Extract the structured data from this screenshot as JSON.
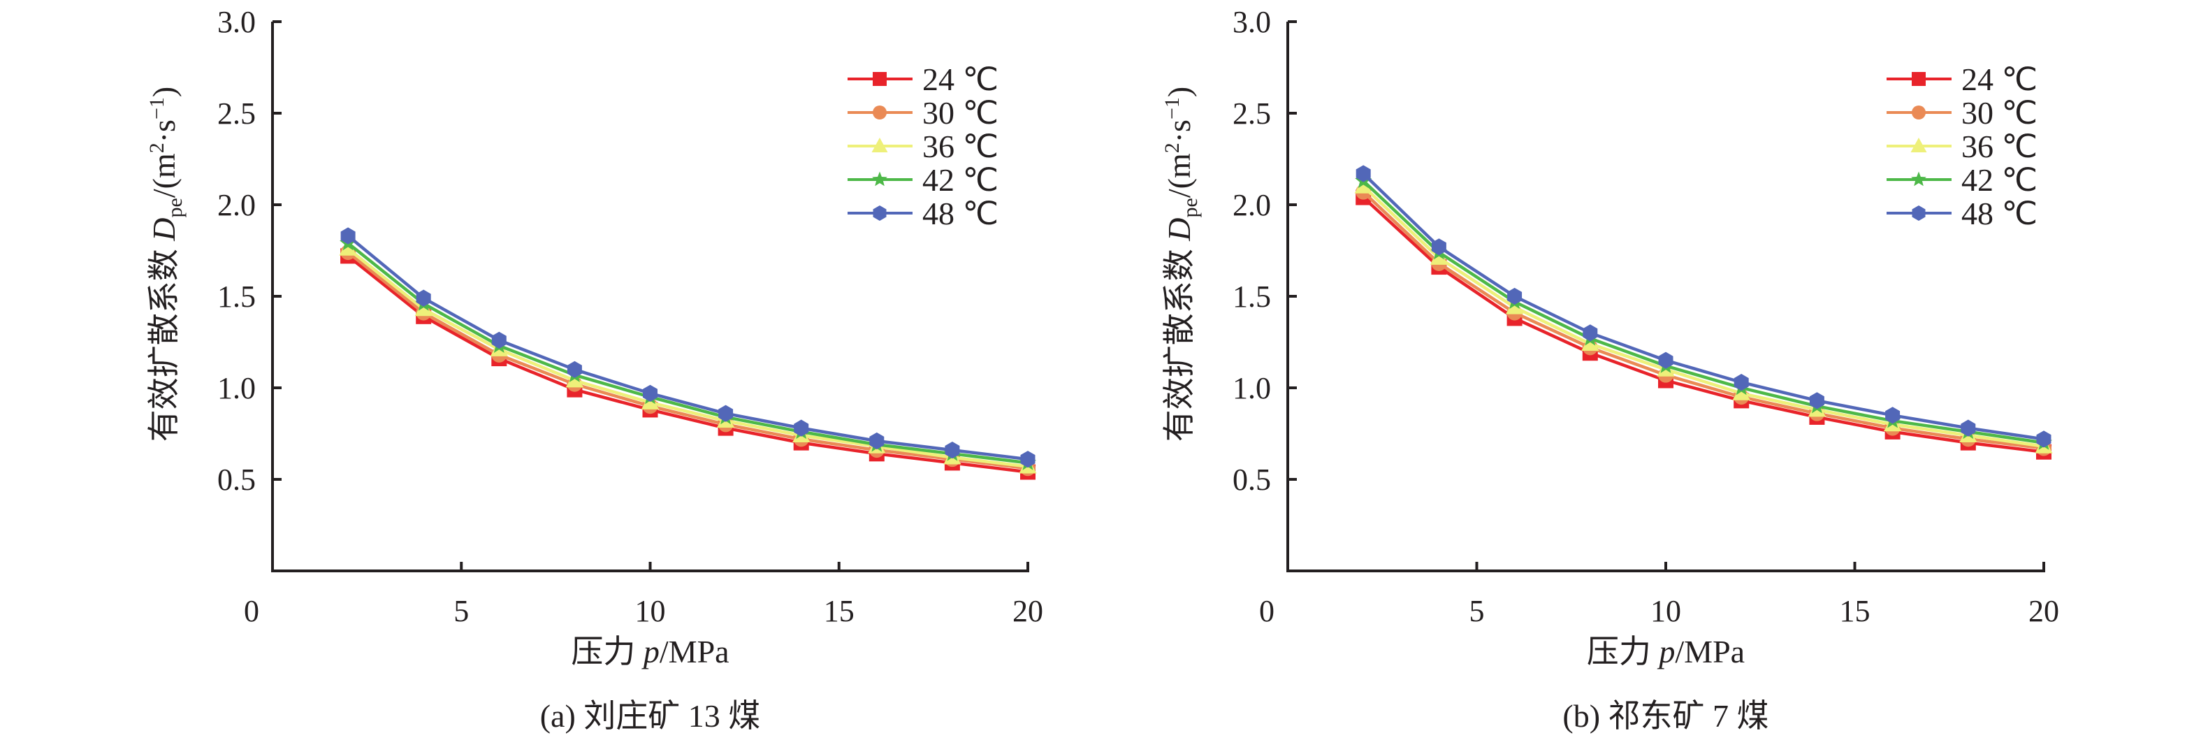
{
  "chart_data": [
    {
      "id": "a",
      "type": "line",
      "subtitle": "(a) 刘庄矿 13 煤",
      "xlabel": "压力 p/MPa",
      "xlabel_parts": {
        "prefix": "压力 ",
        "var": "p",
        "suffix": "/MPa"
      },
      "ylabel": "有效扩散系数 Dpe/(m²·s⁻¹)",
      "ylabel_parts": {
        "prefix": "有效扩散系数 ",
        "var": "D",
        "sub": "pe",
        "unit_open": "/(m",
        "sup1": "2",
        "mid": "·s",
        "sup2": "−1",
        "unit_close": ")"
      },
      "xlim": [
        0,
        20
      ],
      "ylim": [
        0,
        3.0
      ],
      "xticks": [
        "0",
        "5",
        "10",
        "15",
        "20"
      ],
      "xtick_values": [
        0,
        5,
        10,
        15,
        20
      ],
      "yticks": [
        "0.5",
        "1.0",
        "1.5",
        "2.0",
        "2.5",
        "3.0"
      ],
      "ytick_values": [
        0.5,
        1.0,
        1.5,
        2.0,
        2.5,
        3.0
      ],
      "grid": false,
      "legend_position": "top-right",
      "x": [
        2,
        4,
        6,
        8,
        10,
        12,
        14,
        16,
        18,
        20
      ],
      "series": [
        {
          "name": "24 ℃",
          "color": "#e8232a",
          "marker": "square",
          "values": [
            1.72,
            1.39,
            1.16,
            0.99,
            0.88,
            0.78,
            0.7,
            0.64,
            0.59,
            0.54
          ]
        },
        {
          "name": "30 ℃",
          "color": "#ea8a55",
          "marker": "circle",
          "values": [
            1.74,
            1.41,
            1.18,
            1.02,
            0.9,
            0.8,
            0.72,
            0.66,
            0.61,
            0.56
          ]
        },
        {
          "name": "36 ℃",
          "color": "#eef07a",
          "marker": "triangle",
          "values": [
            1.76,
            1.43,
            1.21,
            1.04,
            0.92,
            0.82,
            0.74,
            0.68,
            0.62,
            0.57
          ]
        },
        {
          "name": "42 ℃",
          "color": "#4db848",
          "marker": "star",
          "values": [
            1.79,
            1.46,
            1.23,
            1.07,
            0.95,
            0.84,
            0.76,
            0.69,
            0.64,
            0.59
          ]
        },
        {
          "name": "48 ℃",
          "color": "#5267b8",
          "marker": "hexagon",
          "values": [
            1.83,
            1.49,
            1.26,
            1.1,
            0.97,
            0.86,
            0.78,
            0.71,
            0.66,
            0.61
          ]
        }
      ]
    },
    {
      "id": "b",
      "type": "line",
      "subtitle": "(b) 祁东矿 7 煤",
      "xlabel": "压力 p/MPa",
      "xlabel_parts": {
        "prefix": "压力 ",
        "var": "p",
        "suffix": "/MPa"
      },
      "ylabel": "有效扩散系数 Dpe/(m²·s⁻¹)",
      "ylabel_parts": {
        "prefix": "有效扩散系数 ",
        "var": "D",
        "sub": "pe",
        "unit_open": "/(m",
        "sup1": "2",
        "mid": "·s",
        "sup2": "−1",
        "unit_close": ")"
      },
      "xlim": [
        0,
        20
      ],
      "ylim": [
        0,
        3.0
      ],
      "xticks": [
        "0",
        "5",
        "10",
        "15",
        "20"
      ],
      "xtick_values": [
        0,
        5,
        10,
        15,
        20
      ],
      "yticks": [
        "0.5",
        "1.0",
        "1.5",
        "2.0",
        "2.5",
        "3.0"
      ],
      "ytick_values": [
        0.5,
        1.0,
        1.5,
        2.0,
        2.5,
        3.0
      ],
      "grid": false,
      "legend_position": "top-right",
      "x": [
        2,
        4,
        6,
        8,
        10,
        12,
        14,
        16,
        18,
        20
      ],
      "series": [
        {
          "name": "24 ℃",
          "color": "#e8232a",
          "marker": "square",
          "values": [
            2.04,
            1.66,
            1.38,
            1.19,
            1.04,
            0.93,
            0.84,
            0.76,
            0.7,
            0.65
          ]
        },
        {
          "name": "30 ℃",
          "color": "#ea8a55",
          "marker": "circle",
          "values": [
            2.07,
            1.68,
            1.41,
            1.22,
            1.07,
            0.95,
            0.86,
            0.78,
            0.72,
            0.67
          ]
        },
        {
          "name": "36 ℃",
          "color": "#eef07a",
          "marker": "triangle",
          "values": [
            2.1,
            1.71,
            1.44,
            1.24,
            1.1,
            0.97,
            0.88,
            0.8,
            0.74,
            0.68
          ]
        },
        {
          "name": "42 ℃",
          "color": "#4db848",
          "marker": "star",
          "values": [
            2.13,
            1.74,
            1.47,
            1.27,
            1.12,
            1.0,
            0.9,
            0.82,
            0.76,
            0.7
          ]
        },
        {
          "name": "48 ℃",
          "color": "#5267b8",
          "marker": "hexagon",
          "values": [
            2.17,
            1.77,
            1.5,
            1.3,
            1.15,
            1.03,
            0.93,
            0.85,
            0.78,
            0.72
          ]
        }
      ]
    }
  ]
}
